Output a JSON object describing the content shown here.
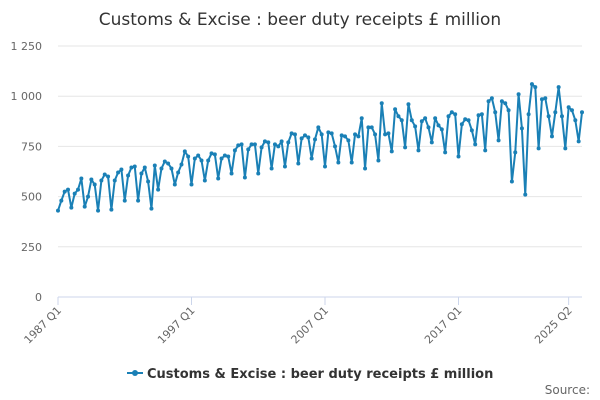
{
  "chart_data": {
    "type": "line",
    "title": "Customs & Excise : beer duty receipts £ million",
    "xlabel": "",
    "ylabel": "",
    "ylim": [
      0,
      1250
    ],
    "yticks": [
      0,
      250,
      500,
      750,
      1000,
      1250
    ],
    "ytick_labels": [
      "0",
      "250",
      "500",
      "750",
      "1 000",
      "1 250"
    ],
    "xticks": [
      {
        "index": 0,
        "label": "1987 Q1"
      },
      {
        "index": 40,
        "label": "1997 Q1"
      },
      {
        "index": 80,
        "label": "2007 Q1"
      },
      {
        "index": 120,
        "label": "2017 Q1"
      },
      {
        "index": 153,
        "label": "2025 Q2"
      }
    ],
    "grid": true,
    "legend_position": "bottom",
    "series": [
      {
        "name": "Customs & Excise : beer duty receipts £ million",
        "color": "#1a80b6",
        "values": [
          430,
          480,
          525,
          535,
          445,
          515,
          535,
          590,
          450,
          500,
          585,
          560,
          430,
          580,
          610,
          600,
          435,
          580,
          620,
          635,
          480,
          605,
          645,
          650,
          480,
          615,
          645,
          575,
          440,
          655,
          535,
          640,
          675,
          665,
          640,
          560,
          620,
          660,
          725,
          700,
          560,
          690,
          705,
          680,
          580,
          680,
          715,
          710,
          590,
          690,
          705,
          700,
          615,
          730,
          755,
          760,
          595,
          735,
          760,
          760,
          615,
          745,
          775,
          770,
          640,
          760,
          750,
          775,
          650,
          770,
          815,
          810,
          665,
          790,
          805,
          795,
          690,
          785,
          845,
          810,
          650,
          820,
          815,
          750,
          670,
          805,
          800,
          780,
          670,
          810,
          800,
          890,
          640,
          845,
          845,
          810,
          680,
          965,
          810,
          815,
          725,
          935,
          900,
          880,
          745,
          960,
          880,
          850,
          730,
          875,
          890,
          845,
          770,
          890,
          855,
          835,
          720,
          900,
          920,
          910,
          700,
          860,
          885,
          880,
          830,
          760,
          905,
          910,
          730,
          975,
          990,
          920,
          780,
          975,
          965,
          930,
          575,
          720,
          1010,
          840,
          510,
          910,
          1060,
          1045,
          740,
          985,
          990,
          900,
          800,
          920,
          1045,
          900,
          740,
          945,
          930,
          880,
          775,
          920
        ]
      }
    ],
    "source_label": "Source:"
  }
}
